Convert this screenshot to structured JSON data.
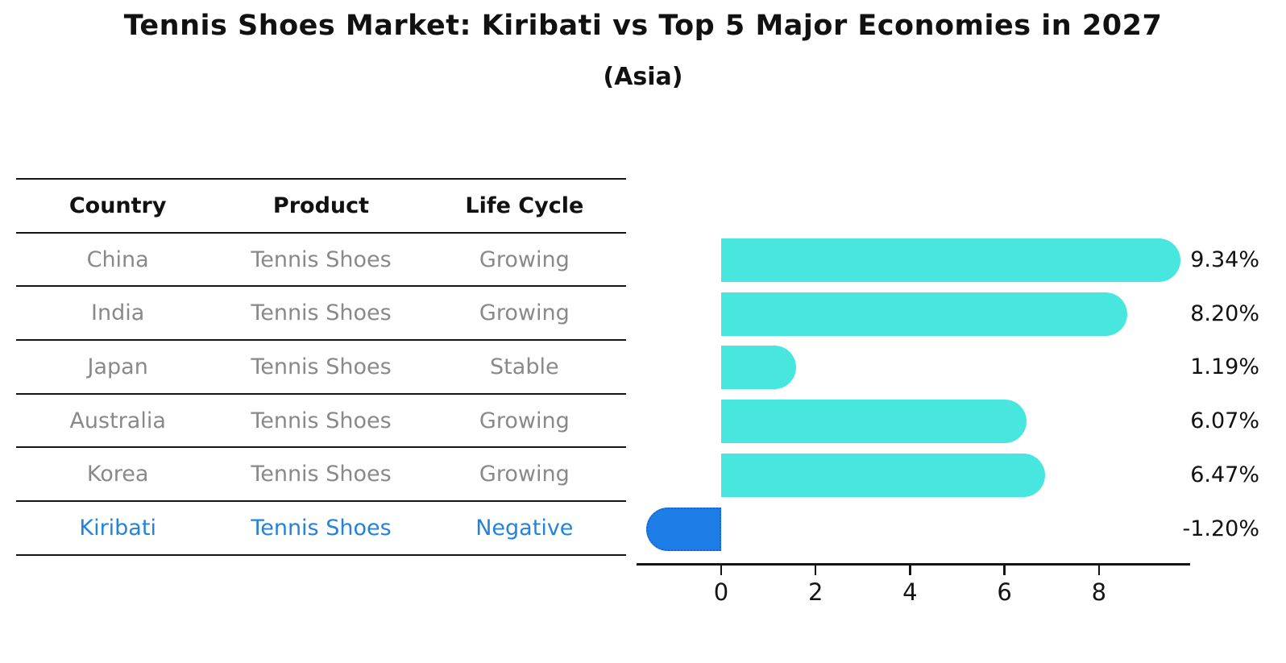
{
  "title": "Tennis Shoes Market: Kiribati vs Top 5 Major Economies in 2027",
  "subtitle": "(Asia)",
  "colors": {
    "bar_positive": "#47E7E0",
    "bar_negative": "#1E7EE8",
    "bar_negative_border": "#1B63CF",
    "highlight_text": "#2383DB",
    "cell_text": "#898989",
    "header_text": "#111111",
    "axis_color": "#141414"
  },
  "table": {
    "headers": [
      "Country",
      "Product",
      "Life Cycle"
    ],
    "rows": [
      {
        "country": "China",
        "product": "Tennis Shoes",
        "life_cycle": "Growing",
        "highlight": false
      },
      {
        "country": "India",
        "product": "Tennis Shoes",
        "life_cycle": "Growing",
        "highlight": false
      },
      {
        "country": "Japan",
        "product": "Tennis Shoes",
        "life_cycle": "Stable",
        "highlight": false
      },
      {
        "country": "Australia",
        "product": "Tennis Shoes",
        "life_cycle": "Growing",
        "highlight": false
      },
      {
        "country": "Korea",
        "product": "Tennis Shoes",
        "life_cycle": "Growing",
        "highlight": false
      },
      {
        "country": "Kiribati",
        "product": "Tennis Shoes",
        "life_cycle": "Negative",
        "highlight": true
      }
    ]
  },
  "chart_data": {
    "type": "bar",
    "orientation": "horizontal",
    "title": "Tennis Shoes Market: Kiribati vs Top 5 Major Economies in 2027",
    "subtitle": "(Asia)",
    "categories": [
      "China",
      "India",
      "Japan",
      "Australia",
      "Korea",
      "Kiribati"
    ],
    "values": [
      9.34,
      8.2,
      1.19,
      6.07,
      6.47,
      -1.2
    ],
    "value_labels": [
      "9.34%",
      "8.20%",
      "1.19%",
      "6.07%",
      "6.47%",
      "-1.20%"
    ],
    "x_ticks": [
      "0",
      "2",
      "4",
      "6",
      "8"
    ],
    "x_tick_values": [
      0,
      2,
      4,
      6,
      8
    ],
    "xlim": [
      -1.8,
      9.95
    ],
    "grid": false,
    "legend": false,
    "highlight_category": "Kiribati",
    "bar_style": "rounded-cap",
    "highlight_bar_style": "rounded-cap-dotted-border"
  }
}
